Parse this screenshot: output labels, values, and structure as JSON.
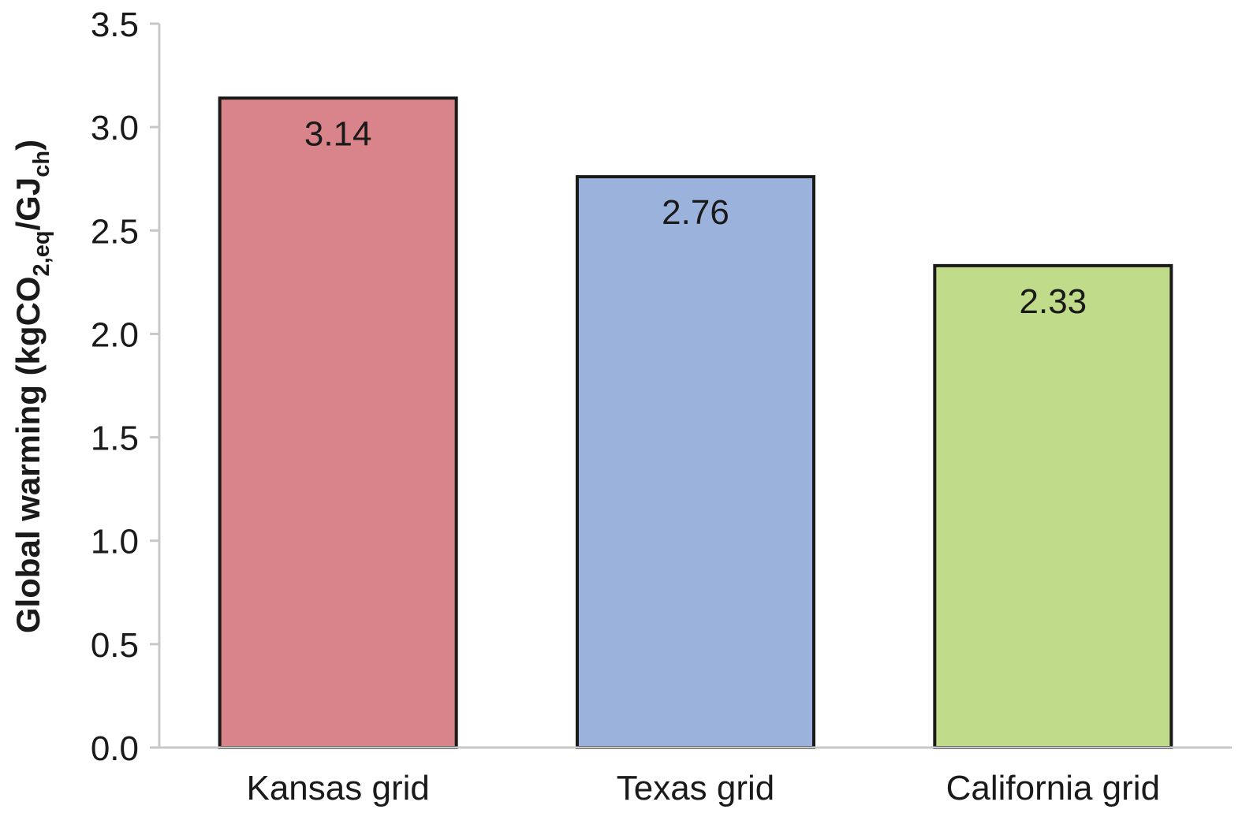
{
  "chart_data": {
    "type": "bar",
    "categories": [
      "Kansas grid",
      "Texas grid",
      "California grid"
    ],
    "values": [
      3.14,
      2.76,
      2.33
    ],
    "data_labels": [
      "3.14",
      "2.76",
      "2.33"
    ],
    "colors": [
      "#d9848b",
      "#9bb3dc",
      "#c0dc8b"
    ],
    "title": "",
    "xlabel": "",
    "ylabel": {
      "prefix": "Global warming (kgCO",
      "sub1": "2,eq",
      "mid": "/GJ",
      "sub2": "ch",
      "suffix": ")"
    },
    "ylim": [
      0,
      3.5
    ],
    "yticks": [
      "0.0",
      "0.5",
      "1.0",
      "1.5",
      "2.0",
      "2.5",
      "3.0",
      "3.5"
    ],
    "grid": false,
    "legend": "none"
  }
}
